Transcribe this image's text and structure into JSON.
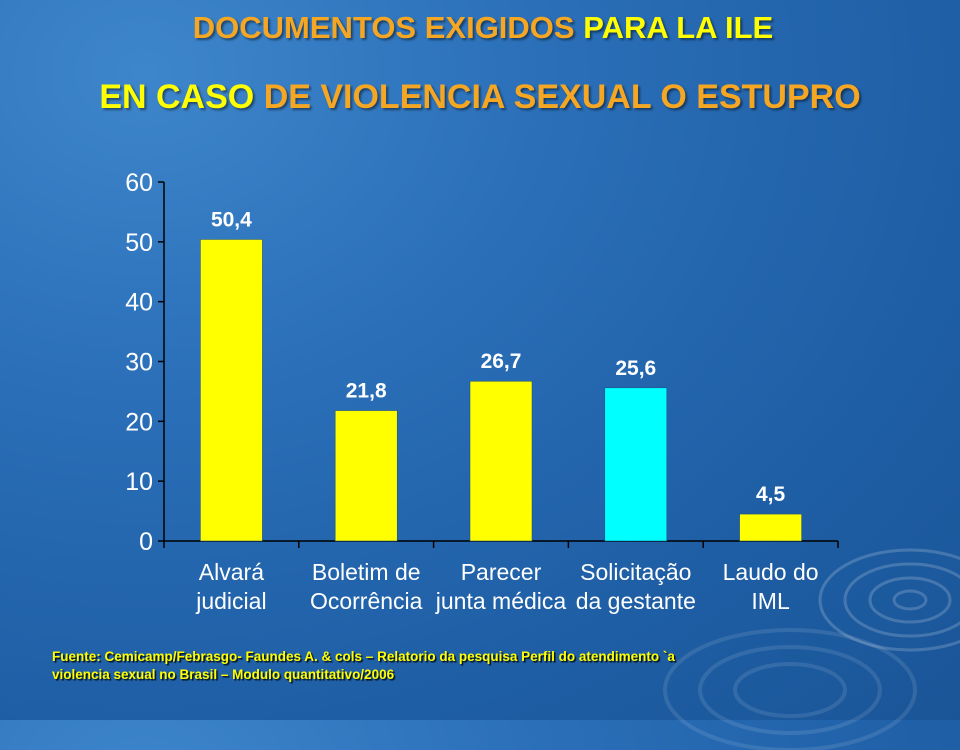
{
  "title": {
    "line1_part1": "DOCUMENTOS EXIGIDOS ",
    "line1_part2": "PARA LA ILE",
    "line2_part1": "EN CASO ",
    "line2_part2": "DE VIOLENCIA SEXUAL O ESTUPRO"
  },
  "colors": {
    "title_orange": "#f5a623",
    "title_yellow": "#ffff00",
    "bar_yellow": "#ffff00",
    "bar_cyan": "#00ffff",
    "background": "#2a6fb8"
  },
  "chart_data": {
    "type": "bar",
    "categories": [
      [
        "Alvará",
        "judicial"
      ],
      [
        "Boletim de",
        "Ocorrência"
      ],
      [
        "Parecer",
        "junta médica"
      ],
      [
        "Solicitação",
        "da gestante"
      ],
      [
        "Laudo do",
        "IML"
      ]
    ],
    "values": [
      50.4,
      21.8,
      26.7,
      25.6,
      4.5
    ],
    "data_labels": [
      "50,4",
      "21,8",
      "26,7",
      "25,6",
      "4,5"
    ],
    "bar_colors": [
      "#ffff00",
      "#ffff00",
      "#ffff00",
      "#00ffff",
      "#ffff00"
    ],
    "ylim": [
      0,
      60
    ],
    "yticks": [
      0,
      10,
      20,
      30,
      40,
      50,
      60
    ],
    "grid": false,
    "legend": "none"
  },
  "footnote": {
    "line1": "Fuente: Cemicamp/Febrasgo- Faundes A. & cols – Relatorio da pesquisa Perfil do atendimento `a",
    "line2": "violencia sexual no Brasil – Modulo quantitativo/2006"
  }
}
